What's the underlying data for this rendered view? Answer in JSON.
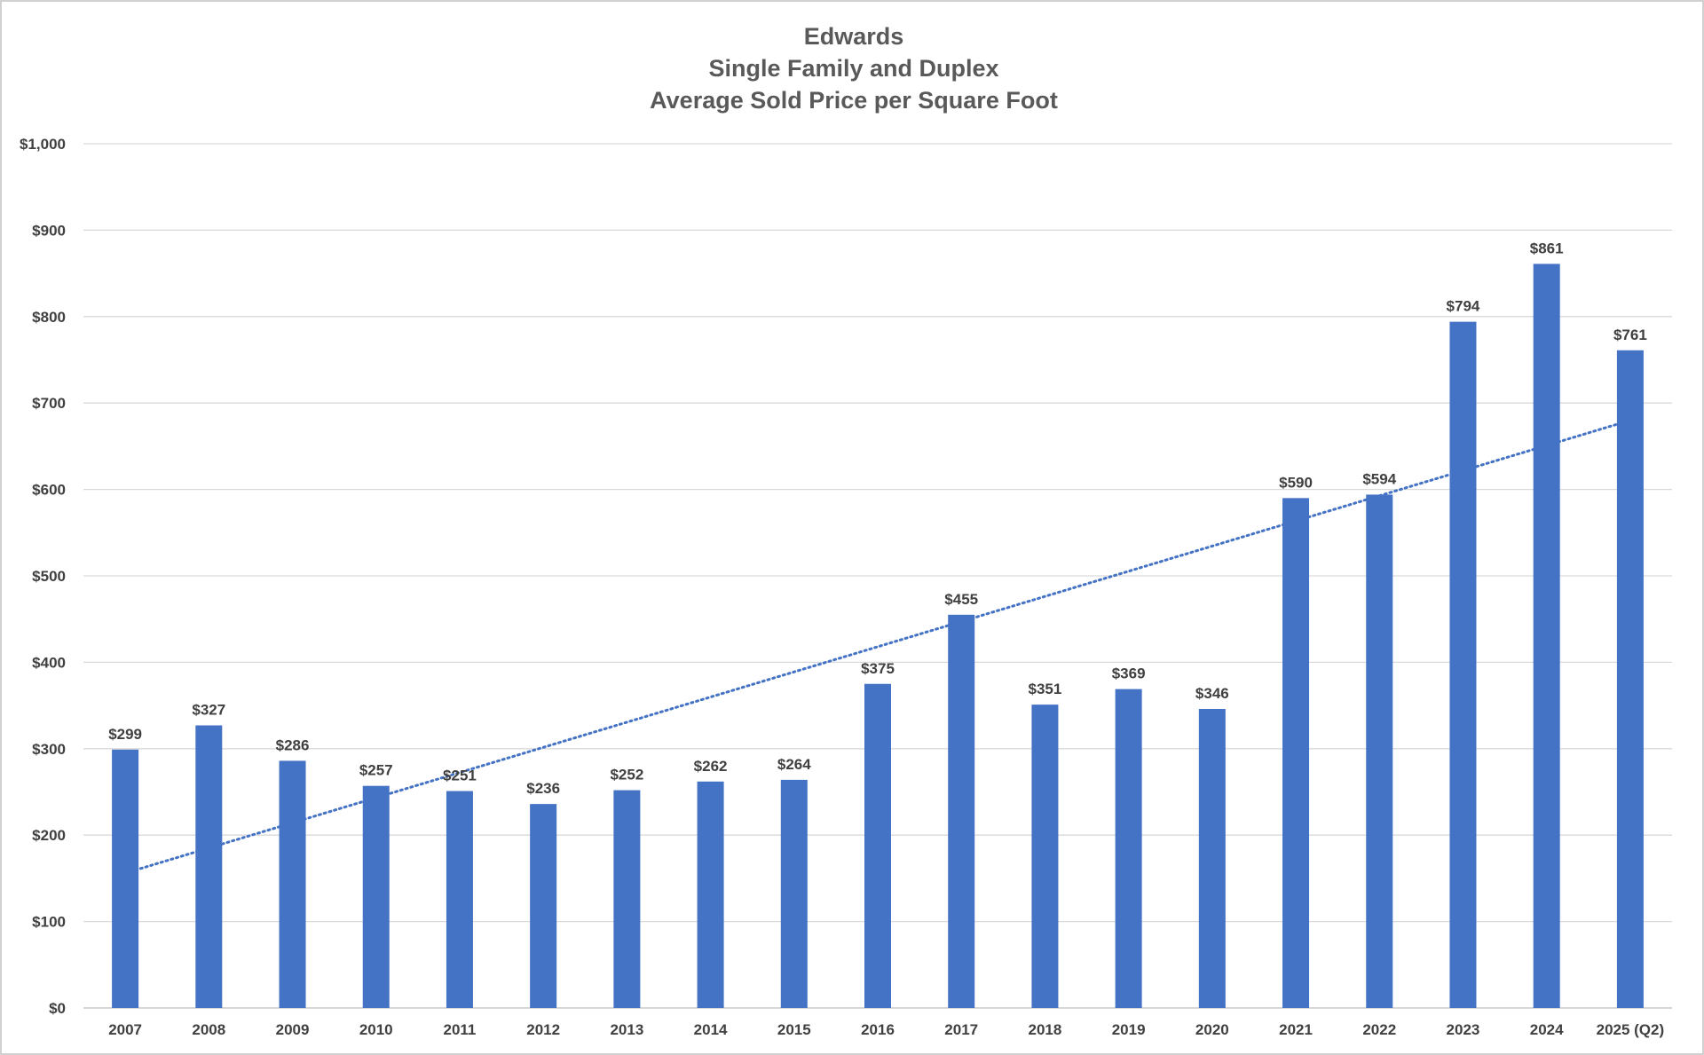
{
  "chart_data": {
    "type": "bar",
    "title_lines": [
      "Edwards",
      "Single Family and Duplex",
      "Average Sold Price per Square Foot"
    ],
    "categories": [
      "2007",
      "2008",
      "2009",
      "2010",
      "2011",
      "2012",
      "2013",
      "2014",
      "2015",
      "2016",
      "2017",
      "2018",
      "2019",
      "2020",
      "2021",
      "2022",
      "2023",
      "2024",
      "2025 (Q2)"
    ],
    "values": [
      299,
      327,
      286,
      257,
      251,
      236,
      252,
      262,
      264,
      375,
      455,
      351,
      369,
      346,
      590,
      594,
      794,
      861,
      761
    ],
    "data_labels": [
      "$299",
      "$327",
      "$286",
      "$257",
      "$251",
      "$236",
      "$252",
      "$262",
      "$264",
      "$375",
      "$455",
      "$351",
      "$369",
      "$346",
      "$590",
      "$594",
      "$794",
      "$861",
      "$761"
    ],
    "ylim": [
      0,
      1000
    ],
    "yticks": [
      0,
      100,
      200,
      300,
      400,
      500,
      600,
      700,
      800,
      900,
      1000
    ],
    "ytick_labels": [
      "$0",
      "$100",
      "$200",
      "$300",
      "$400",
      "$500",
      "$600",
      "$700",
      "$800",
      "$900",
      "$1,000"
    ],
    "trendline": {
      "type": "linear",
      "style": "dotted",
      "start_value": 156,
      "end_value": 680
    },
    "grid": true,
    "legend": "none",
    "bar_color": "#4472C4",
    "trend_color": "#4472C4",
    "grid_color": "#d9d9d9"
  }
}
